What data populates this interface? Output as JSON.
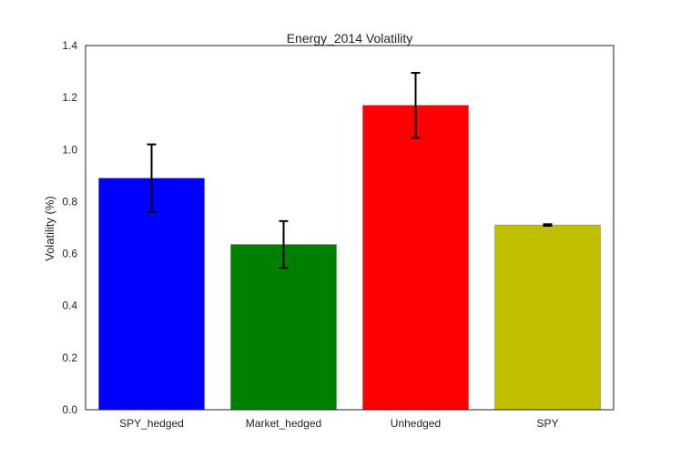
{
  "chart_data": {
    "type": "bar",
    "title": "Energy_2014 Volatility",
    "xlabel": "",
    "ylabel": "Volatility (%)",
    "ylim": [
      0.0,
      1.4
    ],
    "yticks": [
      "0.0",
      "0.2",
      "0.4",
      "0.6",
      "0.8",
      "1.0",
      "1.2",
      "1.4"
    ],
    "categories": [
      "SPY_hedged",
      "Market_hedged",
      "Unhedged",
      "SPY"
    ],
    "values": [
      0.89,
      0.635,
      1.17,
      0.71
    ],
    "errors": [
      0.13,
      0.09,
      0.125,
      0.003
    ],
    "colors": [
      "#0000ff",
      "#008000",
      "#ff0000",
      "#bfbf00"
    ],
    "grid": false,
    "legend": "none"
  }
}
